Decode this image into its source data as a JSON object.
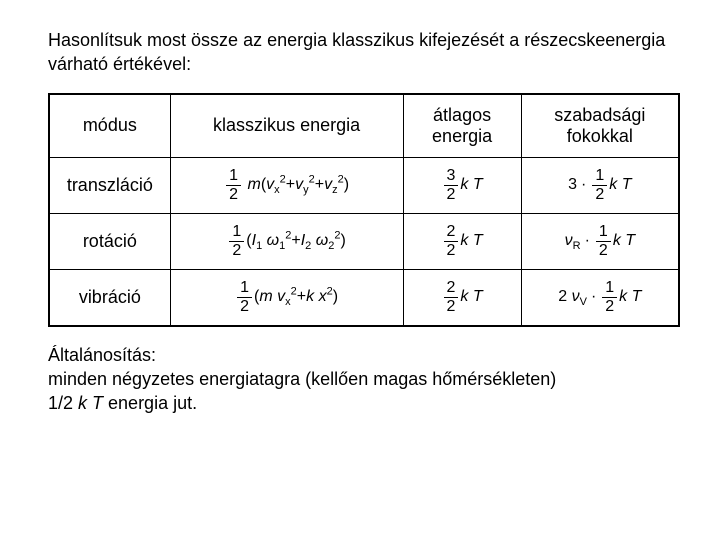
{
  "intro": "Hasonlítsuk most össze az energia klasszikus kifejezését a részecskeenergia várható értékével:",
  "headers": {
    "modus": "módus",
    "klasszikus": "klasszikus energia",
    "atlagos": "átlagos energia",
    "szabadsagi": "szabadsági fokokkal"
  },
  "rows": {
    "transzlacio": "transzláció",
    "rotacio": "rotáció",
    "vibracio": "vibráció"
  },
  "footer_line1": "Általánosítás:",
  "footer_line2": "minden négyzetes energiatagra (kellően magas hőmérsékleten)",
  "footer_line3_prefix": "1/2 ",
  "footer_line3_kt": "k T",
  "footer_line3_suffix": "  energia jut.",
  "style": {
    "table_border_color": "#000000",
    "background_color": "#ffffff",
    "text_color": "#000000",
    "base_fontsize": 18,
    "math_fontsize": 16
  }
}
